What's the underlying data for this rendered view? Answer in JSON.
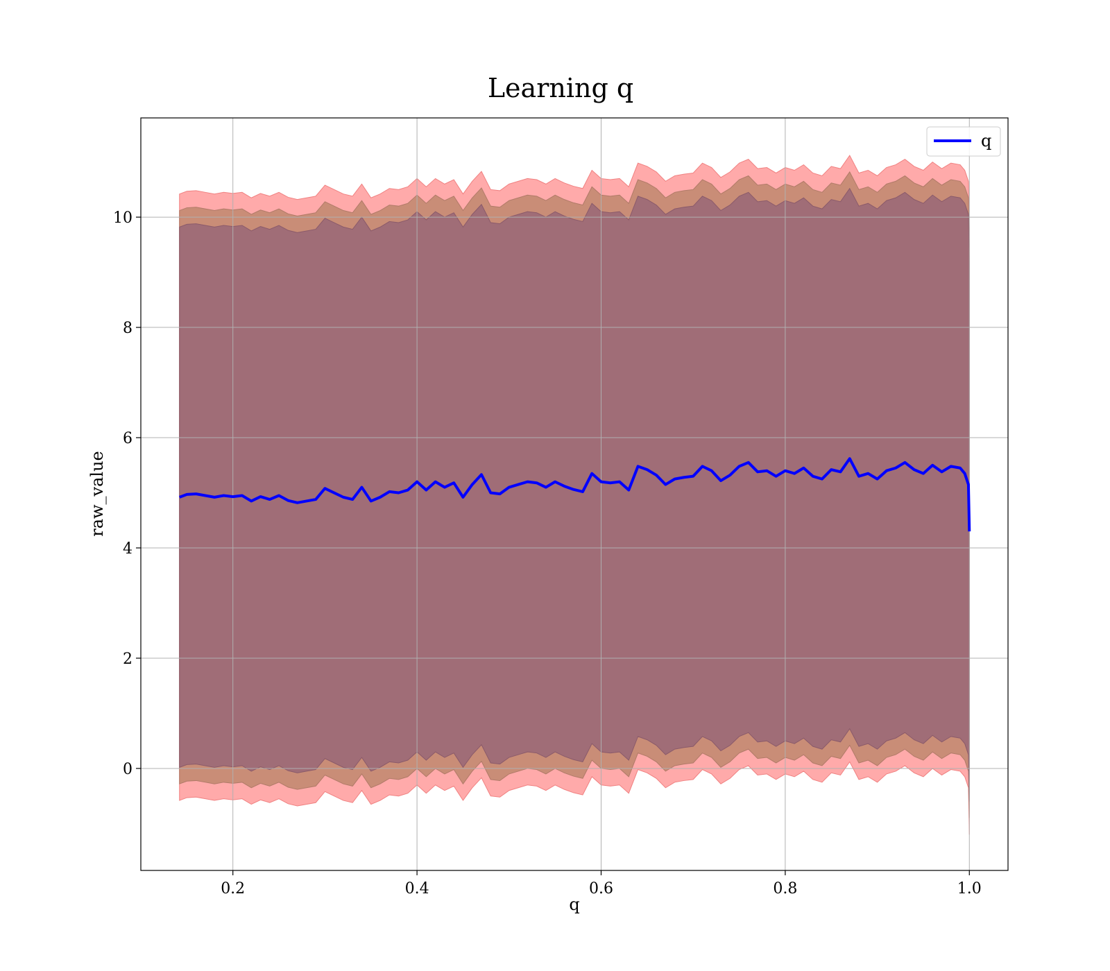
{
  "chart_data": {
    "type": "line",
    "title": "Learning q",
    "xlabel": "q",
    "ylabel": "raw_value",
    "xlim": [
      0.1,
      1.042
    ],
    "ylim": [
      -1.85,
      11.8
    ],
    "xticks": [
      0.2,
      0.4,
      0.6,
      0.8,
      1.0
    ],
    "xtick_labels": [
      "0.2",
      "0.4",
      "0.6",
      "0.8",
      "1.0"
    ],
    "yticks": [
      0,
      2,
      4,
      6,
      8,
      10
    ],
    "ytick_labels": [
      "0",
      "2",
      "4",
      "6",
      "8",
      "10"
    ],
    "grid": true,
    "legend": {
      "position": "top-right",
      "entries": [
        "q"
      ]
    },
    "series": [
      {
        "name": "q",
        "color": "#0000ff",
        "x": [
          0.142,
          0.15,
          0.16,
          0.17,
          0.18,
          0.19,
          0.2,
          0.21,
          0.22,
          0.23,
          0.24,
          0.25,
          0.26,
          0.27,
          0.28,
          0.29,
          0.3,
          0.31,
          0.32,
          0.33,
          0.34,
          0.35,
          0.36,
          0.37,
          0.38,
          0.39,
          0.4,
          0.41,
          0.42,
          0.43,
          0.44,
          0.45,
          0.46,
          0.47,
          0.48,
          0.49,
          0.5,
          0.51,
          0.52,
          0.53,
          0.54,
          0.55,
          0.56,
          0.57,
          0.58,
          0.59,
          0.6,
          0.61,
          0.62,
          0.63,
          0.64,
          0.65,
          0.66,
          0.67,
          0.68,
          0.69,
          0.7,
          0.71,
          0.72,
          0.73,
          0.74,
          0.75,
          0.76,
          0.77,
          0.78,
          0.79,
          0.8,
          0.81,
          0.82,
          0.83,
          0.84,
          0.85,
          0.86,
          0.87,
          0.88,
          0.89,
          0.9,
          0.91,
          0.92,
          0.93,
          0.94,
          0.95,
          0.96,
          0.97,
          0.98,
          0.99,
          0.995,
          0.999,
          1.0
        ],
        "y": [
          4.92,
          4.97,
          4.98,
          4.95,
          4.92,
          4.95,
          4.93,
          4.95,
          4.85,
          4.93,
          4.88,
          4.95,
          4.86,
          4.82,
          4.85,
          4.88,
          5.08,
          5.0,
          4.92,
          4.88,
          5.1,
          4.85,
          4.92,
          5.02,
          5.0,
          5.05,
          5.2,
          5.05,
          5.2,
          5.1,
          5.18,
          4.92,
          5.15,
          5.33,
          5.0,
          4.98,
          5.1,
          5.15,
          5.2,
          5.18,
          5.1,
          5.2,
          5.12,
          5.06,
          5.02,
          5.35,
          5.2,
          5.18,
          5.2,
          5.05,
          5.48,
          5.42,
          5.32,
          5.15,
          5.25,
          5.28,
          5.3,
          5.48,
          5.4,
          5.22,
          5.32,
          5.48,
          5.55,
          5.38,
          5.4,
          5.3,
          5.4,
          5.35,
          5.45,
          5.3,
          5.25,
          5.42,
          5.38,
          5.62,
          5.3,
          5.35,
          5.25,
          5.4,
          5.45,
          5.55,
          5.42,
          5.35,
          5.5,
          5.38,
          5.48,
          5.45,
          5.35,
          5.15,
          4.3
        ],
        "band_inner": 4.9,
        "band_middle": 5.2,
        "band_outer": 5.5
      }
    ]
  },
  "colors": {
    "line": "#0000ff",
    "band_outer": "#ffaaaa",
    "band_middle": "#c98d77",
    "band_inner": "#a06d77",
    "grid": "#b0b0b0",
    "axes": "#000000"
  }
}
